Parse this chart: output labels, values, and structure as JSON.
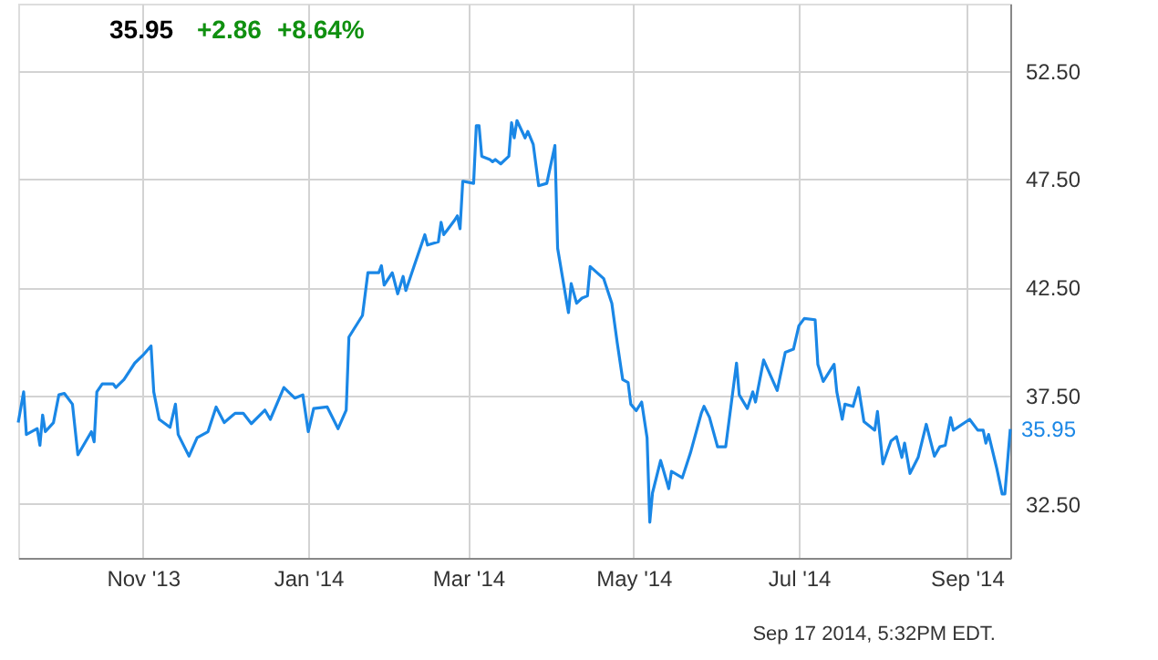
{
  "chart_data": {
    "type": "line",
    "x": [
      "2013-09-16",
      "2013-09-18",
      "2013-09-19",
      "2013-09-23",
      "2013-09-24",
      "2013-09-25",
      "2013-09-26",
      "2013-09-29",
      "2013-10-01",
      "2013-10-03",
      "2013-10-06",
      "2013-10-08",
      "2013-10-13",
      "2013-10-14",
      "2013-10-15",
      "2013-10-17",
      "2013-10-21",
      "2013-10-22",
      "2013-10-25",
      "2013-10-29",
      "2013-11-01",
      "2013-11-04",
      "2013-11-05",
      "2013-11-07",
      "2013-11-11",
      "2013-11-13",
      "2013-11-14",
      "2013-11-18",
      "2013-11-21",
      "2013-11-25",
      "2013-11-28",
      "2013-12-01",
      "2013-12-05",
      "2013-12-08",
      "2013-12-11",
      "2013-12-16",
      "2013-12-18",
      "2013-12-23",
      "2013-12-27",
      "2013-12-30",
      "2014-01-01",
      "2014-01-03",
      "2014-01-08",
      "2014-01-12",
      "2014-01-15",
      "2014-01-16",
      "2014-01-21",
      "2014-01-23",
      "2014-01-27",
      "2014-01-28",
      "2014-01-29",
      "2014-02-01",
      "2014-02-03",
      "2014-02-05",
      "2014-02-06",
      "2014-02-09",
      "2014-02-13",
      "2014-02-14",
      "2014-02-18",
      "2014-02-19",
      "2014-02-20",
      "2014-02-24",
      "2014-02-25",
      "2014-02-26",
      "2014-02-27",
      "2014-03-03",
      "2014-03-04",
      "2014-03-05",
      "2014-03-06",
      "2014-03-09",
      "2014-03-10",
      "2014-03-11",
      "2014-03-13",
      "2014-03-16",
      "2014-03-17",
      "2014-03-18",
      "2014-03-19",
      "2014-03-22",
      "2014-03-23",
      "2014-03-25",
      "2014-03-27",
      "2014-03-30",
      "2014-04-02",
      "2014-04-03",
      "2014-04-07",
      "2014-04-08",
      "2014-04-10",
      "2014-04-12",
      "2014-04-14",
      "2014-04-15",
      "2014-04-20",
      "2014-04-23",
      "2014-04-25",
      "2014-04-27",
      "2014-04-29",
      "2014-04-30",
      "2014-05-02",
      "2014-05-04",
      "2014-05-06",
      "2014-05-07",
      "2014-05-08",
      "2014-05-11",
      "2014-05-14",
      "2014-05-15",
      "2014-05-19",
      "2014-05-22",
      "2014-05-26",
      "2014-05-27",
      "2014-05-29",
      "2014-06-01",
      "2014-06-04",
      "2014-06-08",
      "2014-06-09",
      "2014-06-12",
      "2014-06-14",
      "2014-06-15",
      "2014-06-18",
      "2014-06-23",
      "2014-06-26",
      "2014-06-29",
      "2014-07-01",
      "2014-07-03",
      "2014-07-07",
      "2014-07-08",
      "2014-07-10",
      "2014-07-14",
      "2014-07-15",
      "2014-07-17",
      "2014-07-18",
      "2014-07-21",
      "2014-07-23",
      "2014-07-25",
      "2014-07-29",
      "2014-07-30",
      "2014-08-01",
      "2014-08-04",
      "2014-08-06",
      "2014-08-08",
      "2014-08-09",
      "2014-08-11",
      "2014-08-14",
      "2014-08-17",
      "2014-08-20",
      "2014-08-22",
      "2014-08-24",
      "2014-08-26",
      "2014-08-27",
      "2014-09-02",
      "2014-09-05",
      "2014-09-07",
      "2014-09-08",
      "2014-09-09",
      "2014-09-12",
      "2014-09-14",
      "2014-09-15",
      "2014-09-17"
    ],
    "series": [
      {
        "color": "#1a87e6",
        "values": [
          36.25,
          37.67,
          35.7,
          35.97,
          35.2,
          36.6,
          35.83,
          36.25,
          37.53,
          37.6,
          37.1,
          34.76,
          35.83,
          35.36,
          37.67,
          38.04,
          38.04,
          37.87,
          38.24,
          39.0,
          39.36,
          39.79,
          37.67,
          36.4,
          36.03,
          37.1,
          35.7,
          34.7,
          35.55,
          35.83,
          36.97,
          36.25,
          36.68,
          36.68,
          36.2,
          36.83,
          36.4,
          37.87,
          37.38,
          37.53,
          35.83,
          36.9,
          36.97,
          35.97,
          36.83,
          40.2,
          41.2,
          43.17,
          43.17,
          43.5,
          42.6,
          43.17,
          42.2,
          43.0,
          42.35,
          43.46,
          44.93,
          44.45,
          44.6,
          45.5,
          44.93,
          45.6,
          45.8,
          45.2,
          47.4,
          47.3,
          49.96,
          49.96,
          48.55,
          48.4,
          48.3,
          48.4,
          48.2,
          48.55,
          50.1,
          49.4,
          50.2,
          49.4,
          49.7,
          49.1,
          47.19,
          47.3,
          49.05,
          44.3,
          41.33,
          42.67,
          41.76,
          42.0,
          42.1,
          43.46,
          42.9,
          41.76,
          39.93,
          38.24,
          38.1,
          37.1,
          36.8,
          37.2,
          35.55,
          31.65,
          33.0,
          34.5,
          33.2,
          34.0,
          33.7,
          34.85,
          36.68,
          37.0,
          36.5,
          35.13,
          35.13,
          39.0,
          37.53,
          36.9,
          37.67,
          37.2,
          39.14,
          37.73,
          39.5,
          39.64,
          40.72,
          41.06,
          41.0,
          38.94,
          38.15,
          38.94,
          37.67,
          36.4,
          37.1,
          37.0,
          37.87,
          36.3,
          35.9,
          36.76,
          34.34,
          35.4,
          35.6,
          34.64,
          35.3,
          33.9,
          34.64,
          36.17,
          34.7,
          35.13,
          35.2,
          36.48,
          35.9,
          36.4,
          35.9,
          35.9,
          35.3,
          35.7,
          34.14,
          32.95,
          32.95,
          35.95
        ]
      }
    ],
    "xlim": [
      "2013-09-16",
      "2014-09-17"
    ],
    "xticks": [
      {
        "value": "2013-11-01",
        "label": "Nov '13"
      },
      {
        "value": "2014-01-01",
        "label": "Jan '14"
      },
      {
        "value": "2014-03-01",
        "label": "Mar '14"
      },
      {
        "value": "2014-05-01",
        "label": "May '14"
      },
      {
        "value": "2014-07-01",
        "label": "Jul '14"
      },
      {
        "value": "2014-09-01",
        "label": "Sep '14"
      }
    ],
    "ylim": [
      30.0,
      55.6
    ],
    "yticks": [
      {
        "value": 32.5,
        "label": "32.50"
      },
      {
        "value": 37.5,
        "label": "37.50"
      },
      {
        "value": 42.5,
        "label": "42.50"
      },
      {
        "value": 47.5,
        "label": "47.50"
      },
      {
        "value": 52.5,
        "label": "52.50"
      }
    ],
    "grid": true,
    "annotations": [
      "35.95",
      "+2.86",
      "+8.64%",
      {
        "text": "35.95",
        "x": "2014-09-17",
        "y": 35.95
      },
      "Sep 17 2014, 5:32PM EDT."
    ]
  }
}
